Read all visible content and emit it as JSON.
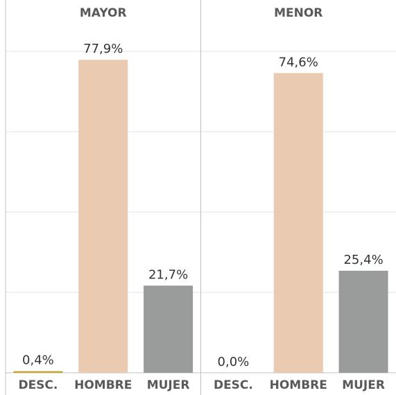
{
  "chart_data": [
    {
      "type": "bar",
      "title": "MAYOR",
      "categories": [
        "DESC.",
        "HOMBRE",
        "MUJER"
      ],
      "values": [
        0.4,
        77.9,
        21.7
      ],
      "value_labels": [
        "0,4%",
        "77,9%",
        "21,7%"
      ],
      "colors": [
        "#c9a227",
        "#ebcab2",
        "#999c9b"
      ],
      "ylim": [
        0,
        80
      ],
      "yticks": [
        0,
        20,
        40,
        60,
        80
      ],
      "grid": true
    },
    {
      "type": "bar",
      "title": "MENOR",
      "categories": [
        "DESC.",
        "HOMBRE",
        "MUJER"
      ],
      "values": [
        0.0,
        74.6,
        25.4
      ],
      "value_labels": [
        "0,0%",
        "74,6%",
        "25,4%"
      ],
      "colors": [
        "#c9a227",
        "#ebcab2",
        "#999c9b"
      ],
      "ylim": [
        0,
        80
      ],
      "yticks": [
        0,
        20,
        40,
        60,
        80
      ],
      "grid": true
    }
  ]
}
